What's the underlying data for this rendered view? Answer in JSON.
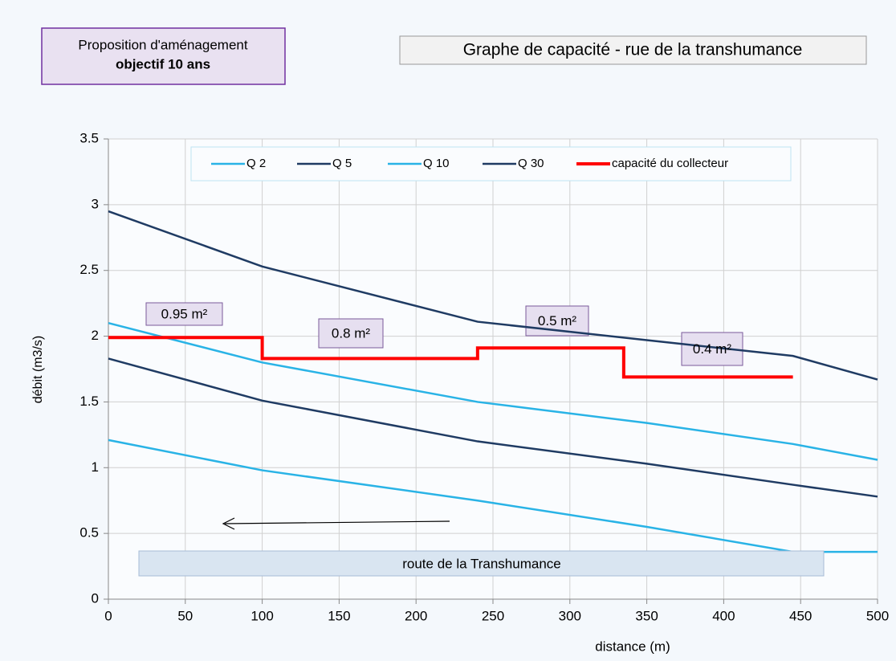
{
  "chart_data": {
    "type": "line",
    "title": "Graphe de capacité - rue de la transhumance",
    "subtitle": [
      "Proposition d'aménagement",
      "objectif 10 ans"
    ],
    "xlabel": "distance   (m)",
    "ylabel": "débit (m3/s)",
    "xlim": [
      0,
      500
    ],
    "ylim": [
      0,
      3.5
    ],
    "xticks": [
      0,
      50,
      100,
      150,
      200,
      250,
      300,
      350,
      400,
      450,
      500
    ],
    "yticks": [
      0,
      0.5,
      1,
      1.5,
      2,
      2.5,
      3,
      3.5
    ],
    "grid": true,
    "legend": "top",
    "series": [
      {
        "name": "Q 2",
        "color": "#29b3e6",
        "x": [
          0,
          100,
          240,
          350,
          445,
          500
        ],
        "values": [
          1.21,
          0.98,
          0.75,
          0.55,
          0.36,
          0.36
        ]
      },
      {
        "name": "Q 5",
        "color": "#1f3b63",
        "x": [
          0,
          100,
          240,
          350,
          445,
          500
        ],
        "values": [
          1.83,
          1.51,
          1.2,
          1.03,
          0.87,
          0.78
        ]
      },
      {
        "name": "Q 10",
        "color": "#29b3e6",
        "x": [
          0,
          100,
          240,
          350,
          445,
          500
        ],
        "values": [
          2.1,
          1.8,
          1.5,
          1.34,
          1.18,
          1.06
        ]
      },
      {
        "name": "Q 30",
        "color": "#1f3b63",
        "x": [
          0,
          100,
          240,
          350,
          445,
          500
        ],
        "values": [
          2.95,
          2.53,
          2.11,
          1.97,
          1.85,
          1.67
        ]
      },
      {
        "name": "capacité du collecteur",
        "color": "#ff0000",
        "x": [
          0,
          100,
          100,
          240,
          240,
          335,
          335,
          445
        ],
        "values": [
          1.99,
          1.99,
          1.83,
          1.83,
          1.91,
          1.91,
          1.69,
          1.69
        ]
      }
    ],
    "annotations": [
      "0.95 m²",
      "0.8 m²",
      "0.5 m²",
      "0.4 m²",
      "route de la Transhumance"
    ]
  }
}
